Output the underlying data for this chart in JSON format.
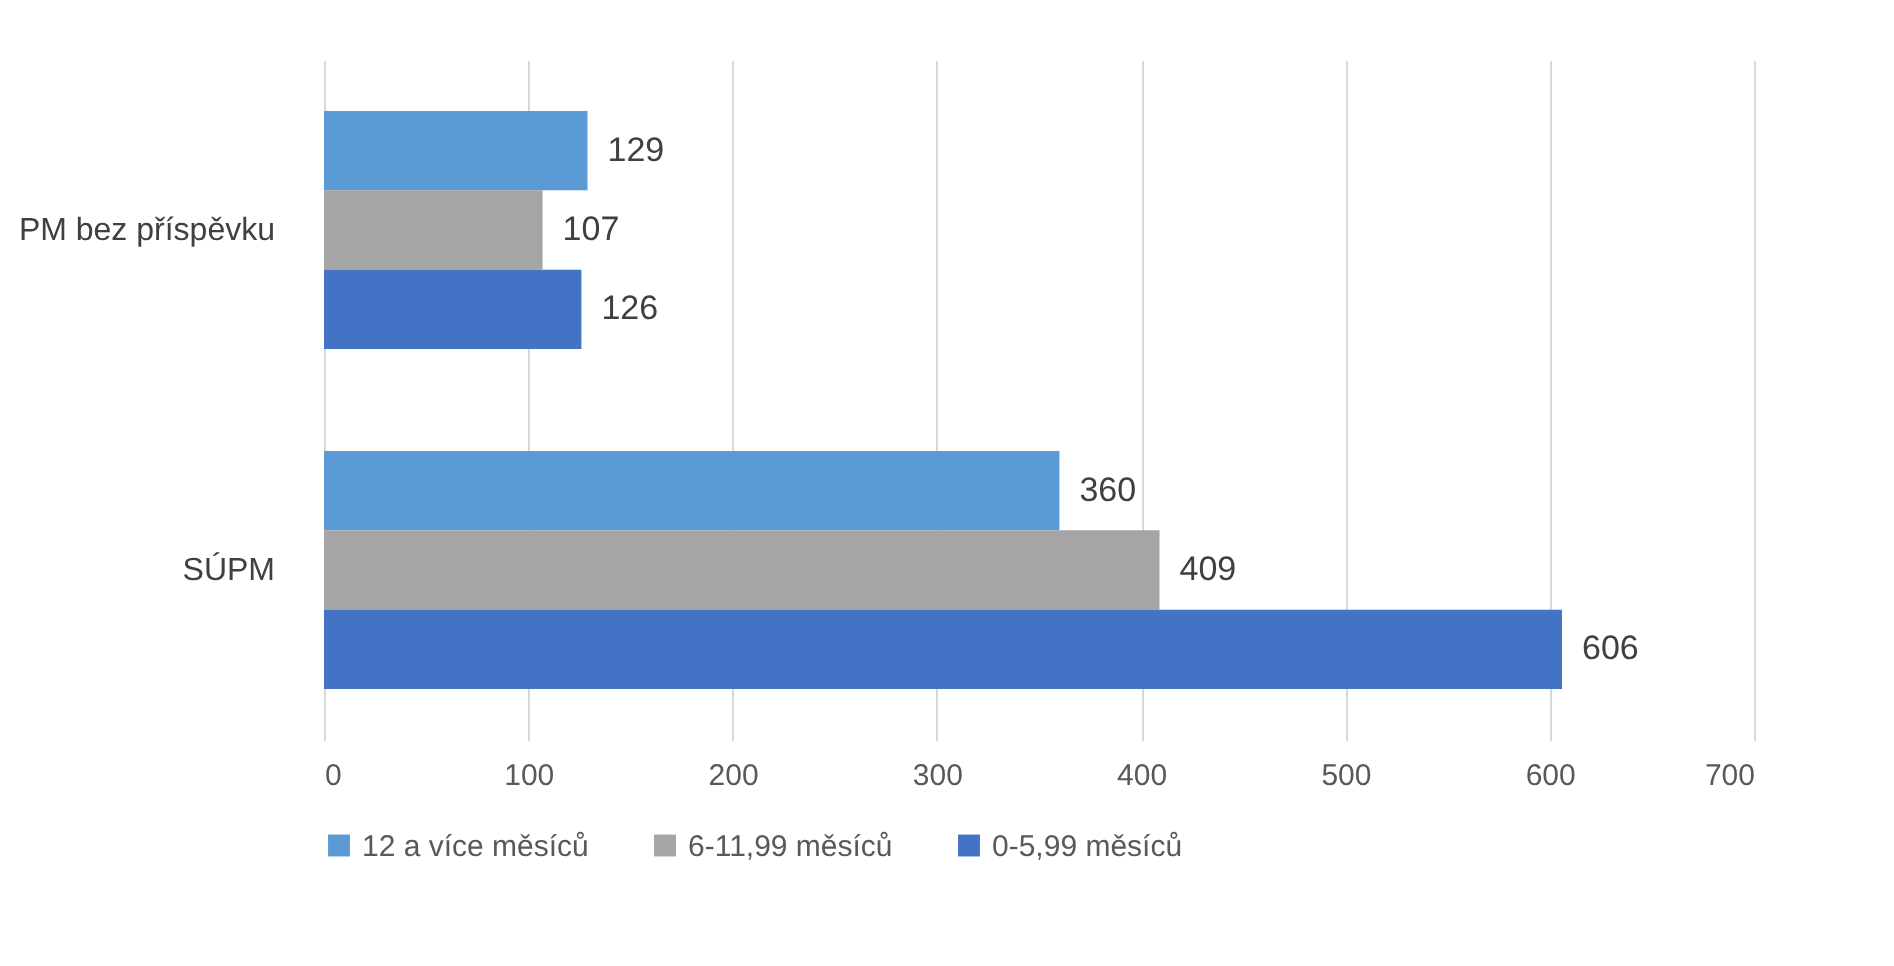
{
  "chart_data": {
    "type": "bar",
    "orientation": "horizontal",
    "categories": [
      "PM bez příspěvku",
      "SÚPM"
    ],
    "series": [
      {
        "name": "12 a více měsíců",
        "color": "#5b9bd5",
        "values": [
          129,
          360
        ]
      },
      {
        "name": "6-11,99 měsíců",
        "color": "#a5a5a5",
        "values": [
          107,
          409
        ]
      },
      {
        "name": "0-5,99 měsíců",
        "color": "#4472c4",
        "values": [
          126,
          606
        ]
      }
    ],
    "xlim": [
      0,
      700
    ],
    "xticks": [
      0,
      100,
      200,
      300,
      400,
      500,
      600,
      700
    ],
    "grid": "x",
    "legend": "bottom",
    "data_labels": true
  }
}
